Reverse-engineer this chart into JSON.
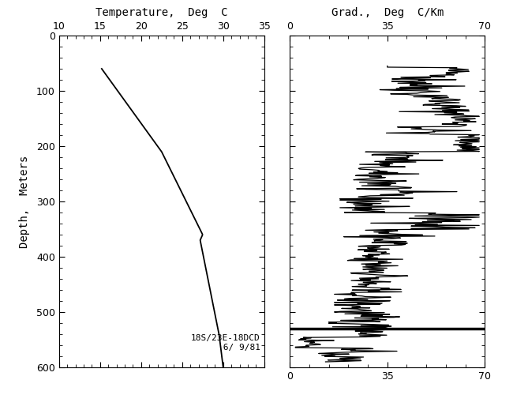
{
  "title_left": "Temperature,  Deg  C",
  "title_right": "Grad.,  Deg  C/Km",
  "ylabel": "Depth,  Meters",
  "temp_xlim": [
    10,
    35
  ],
  "temp_xticks": [
    10,
    15,
    20,
    25,
    30,
    35
  ],
  "grad_xlim": [
    0,
    70
  ],
  "grad_xticks": [
    0,
    35,
    70
  ],
  "ylim": [
    600,
    0
  ],
  "yticks": [
    0,
    100,
    200,
    300,
    400,
    500,
    600
  ],
  "annotation": "18S/23E-18DCD\n 6/ 9/81",
  "background_color": "#ffffff",
  "line_color": "#000000"
}
